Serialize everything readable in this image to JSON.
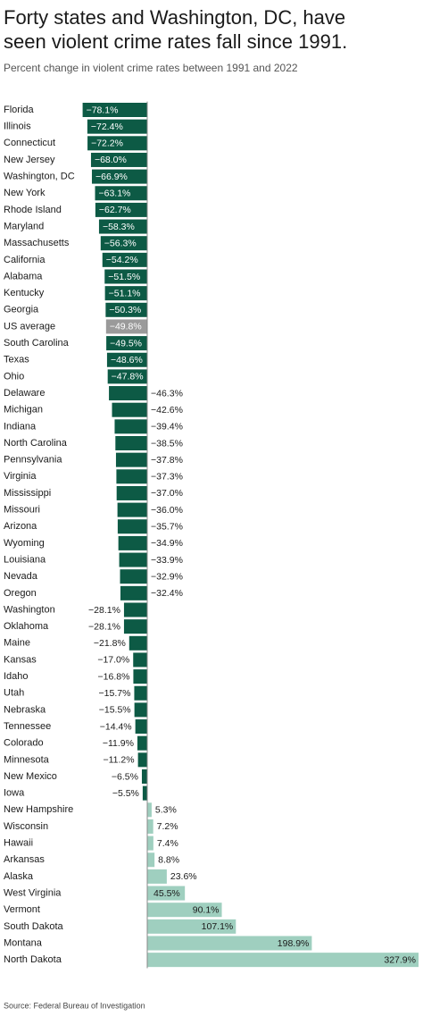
{
  "chart_data": {
    "type": "barh",
    "title_lines": [
      "Forty states and Washington, DC, have",
      "seen violent crime rates fall since 1991."
    ],
    "subtitle": "Percent change in violent crime rates between 1991 and 2022",
    "source": "Source: Federal Bureau of Investigation",
    "categories": [
      "Florida",
      "Illinois",
      "Connecticut",
      "New Jersey",
      "Washington, DC",
      "New York",
      "Rhode Island",
      "Maryland",
      "Massachusetts",
      "California",
      "Alabama",
      "Kentucky",
      "Georgia",
      "US average",
      "South Carolina",
      "Texas",
      "Ohio",
      "Delaware",
      "Michigan",
      "Indiana",
      "North Carolina",
      "Pennsylvania",
      "Virginia",
      "Mississippi",
      "Missouri",
      "Arizona",
      "Wyoming",
      "Louisiana",
      "Nevada",
      "Oregon",
      "Washington",
      "Oklahoma",
      "Maine",
      "Kansas",
      "Idaho",
      "Utah",
      "Nebraska",
      "Tennessee",
      "Colorado",
      "Minnesota",
      "New Mexico",
      "Iowa",
      "New Hampshire",
      "Wisconsin",
      "Hawaii",
      "Arkansas",
      "Alaska",
      "West Virginia",
      "Vermont",
      "South Dakota",
      "Montana",
      "North Dakota"
    ],
    "values": [
      -78.1,
      -72.4,
      -72.2,
      -68.0,
      -66.9,
      -63.1,
      -62.7,
      -58.3,
      -56.3,
      -54.2,
      -51.5,
      -51.1,
      -50.3,
      -49.8,
      -49.5,
      -48.6,
      -47.8,
      -46.3,
      -42.6,
      -39.4,
      -38.5,
      -37.8,
      -37.3,
      -37.0,
      -36.0,
      -35.7,
      -34.9,
      -33.9,
      -32.9,
      -32.4,
      -28.1,
      -28.1,
      -21.8,
      -17.0,
      -16.8,
      -15.7,
      -15.5,
      -14.4,
      -11.9,
      -11.2,
      -6.5,
      -5.5,
      5.3,
      7.2,
      7.4,
      8.8,
      23.6,
      45.5,
      90.1,
      107.1,
      198.9,
      327.9
    ],
    "value_labels": [
      "−78.1%",
      "−72.4%",
      "−72.2%",
      "−68.0%",
      "−66.9%",
      "−63.1%",
      "−62.7%",
      "−58.3%",
      "−56.3%",
      "−54.2%",
      "−51.5%",
      "−51.1%",
      "−50.3%",
      "−49.8%",
      "−49.5%",
      "−48.6%",
      "−47.8%",
      "−46.3%",
      "−42.6%",
      "−39.4%",
      "−38.5%",
      "−37.8%",
      "−37.3%",
      "−37.0%",
      "−36.0%",
      "−35.7%",
      "−34.9%",
      "−33.9%",
      "−32.9%",
      "−32.4%",
      "−28.1%",
      "−28.1%",
      "−21.8%",
      "−17.0%",
      "−16.8%",
      "−15.7%",
      "−15.5%",
      "−14.4%",
      "−11.9%",
      "−11.2%",
      "−6.5%",
      "−5.5%",
      "5.3%",
      "7.2%",
      "7.4%",
      "8.8%",
      "23.6%",
      "45.5%",
      "90.1%",
      "107.1%",
      "198.9%",
      "327.9%"
    ],
    "colors": [
      "#0d5a45",
      "#0d5a45",
      "#0d5a45",
      "#0d5a45",
      "#0d5a45",
      "#0d5a45",
      "#0d5a45",
      "#0d5a45",
      "#0d5a45",
      "#0d5a45",
      "#0d5a45",
      "#0d5a45",
      "#0d5a45",
      "#9a9a9a",
      "#0d5a45",
      "#0d5a45",
      "#0d5a45",
      "#0d5a45",
      "#0d5a45",
      "#0d5a45",
      "#0d5a45",
      "#0d5a45",
      "#0d5a45",
      "#0d5a45",
      "#0d5a45",
      "#0d5a45",
      "#0d5a45",
      "#0d5a45",
      "#0d5a45",
      "#0d5a45",
      "#0d5a45",
      "#0d5a45",
      "#0d5a45",
      "#0d5a45",
      "#0d5a45",
      "#0d5a45",
      "#0d5a45",
      "#0d5a45",
      "#0d5a45",
      "#0d5a45",
      "#0d5a45",
      "#0d5a45",
      "#9fcfbf",
      "#9fcfbf",
      "#9fcfbf",
      "#9fcfbf",
      "#9fcfbf",
      "#9fcfbf",
      "#9fcfbf",
      "#9fcfbf",
      "#9fcfbf",
      "#9fcfbf"
    ]
  }
}
